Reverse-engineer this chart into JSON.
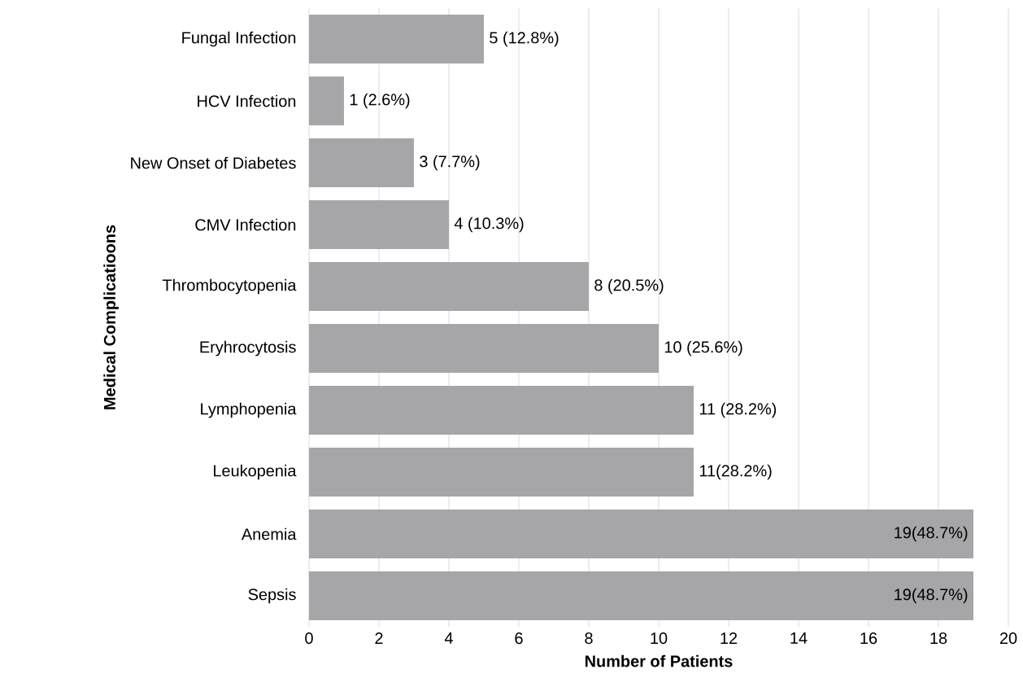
{
  "chart_data": {
    "type": "bar",
    "orientation": "horizontal",
    "xlabel": "Number of Patients",
    "ylabel": "Medical Complicatioons",
    "categories": [
      "Fungal Infection",
      "HCV Infection",
      "New Onset of Diabetes",
      "CMV Infection",
      "Thrombocytopenia",
      "Eryhrocytosis",
      "Lymphopenia",
      "Leukopenia",
      "Anemia",
      "Sepsis"
    ],
    "values": [
      5,
      1,
      3,
      4,
      8,
      10,
      11,
      11,
      19,
      19
    ],
    "value_labels": [
      "5 (12.8%)",
      "1 (2.6%)",
      "3 (7.7%)",
      "4 (10.3%)",
      "8 (20.5%)",
      "10 (25.6%)",
      "11 (28.2%)",
      "11(28.2%)",
      "19(48.7%)",
      "19(48.7%)"
    ],
    "color": "#a6a6a8",
    "xlim": [
      0,
      20
    ],
    "xticks": [
      0,
      2,
      4,
      6,
      8,
      10,
      12,
      14,
      16,
      18,
      20
    ],
    "grid": "x"
  }
}
